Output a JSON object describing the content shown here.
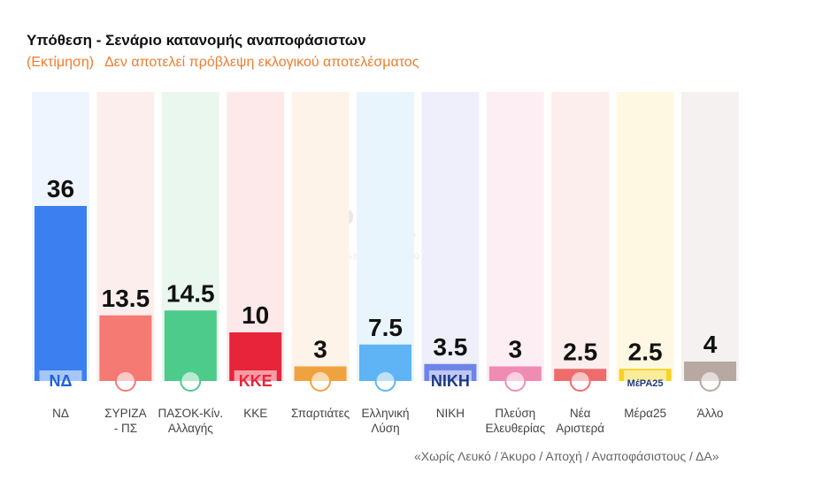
{
  "header": {
    "title": "Υπόθεση - Σενάριο κατανομής αναποφάσιστων",
    "subtitle_paren": "(Εκτίμηση)",
    "subtitle_text": "Δεν αποτελεί πρόβλεψη εκλογικού αποτελέσματος"
  },
  "watermark": {
    "brand": "PULSE",
    "tagline": "RESEARCH & CONSULTING"
  },
  "chart_data": {
    "type": "bar",
    "title": "Υπόθεση - Σενάριο κατανομής αναποφάσιστων",
    "subtitle": "(Εκτίμηση) Δεν αποτελεί πρόβλεψη εκλογικού αποτελέσματος",
    "xlabel": "",
    "ylabel": "",
    "ylim": [
      0,
      44
    ],
    "grid": false,
    "categories": [
      "ΝΔ",
      "ΣΥΡΙΖΑ\n- ΠΣ",
      "ΠΑΣΟΚ-Κίν.\nΑλλαγής",
      "ΚΚΕ",
      "Σπαρτιάτες",
      "Ελληνική\nΛύση",
      "ΝΙΚΗ",
      "Πλεύση\nΕλευθερίας",
      "Νέα\nΑριστερά",
      "Μέρα25",
      "Άλλο"
    ],
    "values": [
      36,
      13.5,
      14.5,
      10,
      3,
      7.5,
      3.5,
      3,
      2.5,
      2.5,
      4
    ],
    "value_labels": [
      "36",
      "13.5",
      "14.5",
      "10",
      "3",
      "7.5",
      "3.5",
      "3",
      "2.5",
      "2.5",
      "4"
    ],
    "colors": [
      "#3b7ff0",
      "#f47a73",
      "#4ccb8a",
      "#e8243a",
      "#f0a23e",
      "#5eb4f4",
      "#6f84e8",
      "#f08cb4",
      "#ef6c6c",
      "#f7d21f",
      "#b8a8a2"
    ],
    "background_colors": [
      "#eef5ff",
      "#fdeeee",
      "#e9f7ef",
      "#fde8ea",
      "#fdf3e8",
      "#e9f5fd",
      "#eeeffb",
      "#fdeef4",
      "#fdeeee",
      "#fef8e2",
      "#f4f1f0"
    ],
    "logos": [
      "ΝΔ",
      "",
      "",
      "ΚΚΕ",
      "",
      "",
      "ΝΙΚΗ",
      "",
      "",
      "ΜέΡΑ25",
      ""
    ]
  },
  "footnote": "«Χωρίς Λευκό / Άκυρο / Αποχή / Αναποφάσιστους / ΔΑ»"
}
